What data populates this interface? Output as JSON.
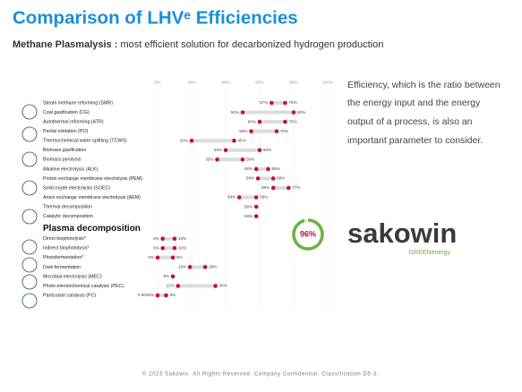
{
  "header": {
    "title": "Comparison of LHVᵉ Efficiencies",
    "subtitle_bold": "Methane Plasmalysis :",
    "subtitle": "most efficient solution for decarbonized hydrogen production"
  },
  "side_text": [
    "Efficiency, which is the ratio between",
    "the energy input and the energy",
    "output of a process, is also an",
    "important parameter to consider."
  ],
  "logo": {
    "name": "sakowin",
    "tagline": "GREENenergy"
  },
  "footer": "© 2023 Sakowin. All Rights Reserved. Company Confidential. Classification D5-3.",
  "chart_data": {
    "type": "dumbbell",
    "categories": [
      "Steam methane reforming (SMR)",
      "Coal gasification (CG)",
      "Autothermal reforming (ATR)",
      "Partial oxidation (PO)",
      "Thermochemical water splitting (TCWS)",
      "Biomass gasification",
      "Biomass pyrolysis",
      "Alkaline electrolysis (ALK)",
      "Proton exchange membrane electrolysis (PEM)",
      "Solid oxyde electrolysis (SOEC)",
      "Anion exchange membrane electrolysis (AEM)",
      "Thermal decomposition",
      "Catalytic decomposition",
      "Plasma decomposition",
      "Direct biophotolysis*",
      "Indirect biophotolysis*",
      "Photofermentation*",
      "Dark fermentation",
      "Microbial electrolysis (MEC)",
      "Photo-electrochemical catalysis (PEC)",
      "Particulate catalysis (PC)"
    ],
    "series": [
      {
        "color": "#c8102e",
        "values": [
          67,
          50,
          60,
          55,
          20,
          40,
          35,
          58,
          59,
          68,
          48,
          58,
          58,
          null,
          3,
          3,
          0,
          19,
          9,
          12,
          0.0025
        ],
        "value_labels": [
          "67%",
          "50%",
          "60%",
          "55%",
          "20%",
          "40%",
          "35%",
          "58%",
          "59%",
          "68%",
          "48%",
          "58%",
          "58%",
          null,
          "3%",
          "3%",
          "0%",
          "19%",
          "9%",
          "12%",
          "0.0025%"
        ]
      },
      {
        "color": "#c8102e",
        "values": [
          75,
          80,
          75,
          70,
          45,
          60,
          50,
          65,
          68,
          77,
          58,
          null,
          null,
          null,
          10,
          10,
          9,
          28,
          null,
          34,
          5
        ],
        "value_labels": [
          "75%",
          "80%",
          "75%",
          "70%",
          "45%",
          "60%",
          "50%",
          "65%",
          "68%",
          "77%",
          "58%",
          null,
          null,
          null,
          "10%",
          "10%",
          "9%",
          "28%",
          null,
          "34%",
          "5%"
        ]
      }
    ],
    "highlight": {
      "value": 96,
      "label": "96%"
    },
    "xlim": [
      0,
      100
    ],
    "xticks": [
      {
        "value": 0,
        "label": "0%"
      },
      {
        "value": 20,
        "label": "20%"
      },
      {
        "value": 40,
        "label": "40%"
      },
      {
        "value": 60,
        "label": "60%"
      },
      {
        "value": 80,
        "label": "80%"
      },
      {
        "value": 100,
        "label": "100%"
      }
    ],
    "grid": true
  }
}
